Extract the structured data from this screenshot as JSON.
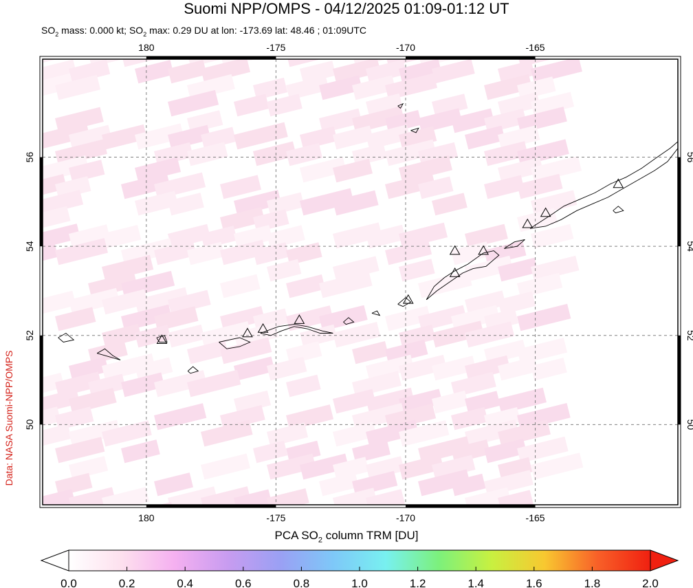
{
  "header": {
    "title": "Suomi NPP/OMPS - 04/12/2025 01:09-01:12 UT",
    "subtitle_part1": "SO",
    "subtitle_sub1": "2",
    "subtitle_part2": " mass: 0.000 kt; SO",
    "subtitle_sub2": "2",
    "subtitle_part3": " max: 0.29 DU at lon: -173.69 lat: 48.46 ; 01:09UTC"
  },
  "credit": "Data: NASA Suomi-NPP/OMPS",
  "map": {
    "lon_range": [
      -184,
      -159.5
    ],
    "lat_range": [
      48.2,
      58.2
    ],
    "lon_ticks": [
      {
        "lon": 180,
        "label": "180"
      },
      {
        "lon": -175,
        "label": "-175"
      },
      {
        "lon": -170,
        "label": "-170"
      },
      {
        "lon": -165,
        "label": "-165"
      }
    ],
    "lat_ticks": [
      {
        "lat": 56,
        "label": "56"
      },
      {
        "lat": 54,
        "label": "54"
      },
      {
        "lat": 52,
        "label": "52"
      },
      {
        "lat": 50,
        "label": "50"
      }
    ],
    "colors": {
      "frame": "#000000",
      "grid": "#808080",
      "coast": "#000000",
      "so2_low": "#fde6f0"
    },
    "volcanoes": [
      {
        "lon": -179.4,
        "lat": 51.9
      },
      {
        "lon": -176.1,
        "lat": 52.05
      },
      {
        "lon": -175.5,
        "lat": 52.15
      },
      {
        "lon": -174.1,
        "lat": 52.35
      },
      {
        "lon": -169.9,
        "lat": 52.8
      },
      {
        "lon": -168.1,
        "lat": 53.4
      },
      {
        "lon": -168.1,
        "lat": 53.9
      },
      {
        "lon": -167.0,
        "lat": 53.9
      },
      {
        "lon": -165.3,
        "lat": 54.5
      },
      {
        "lon": -164.6,
        "lat": 54.75
      },
      {
        "lon": -161.8,
        "lat": 55.4
      }
    ]
  },
  "colorbar": {
    "title_part1": "PCA SO",
    "title_sub": "2",
    "title_part2": " column TRM [DU]",
    "min": 0.0,
    "max": 2.0,
    "tick_labels": [
      "0.0",
      "0.2",
      "0.4",
      "0.6",
      "0.8",
      "1.0",
      "1.2",
      "1.4",
      "1.6",
      "1.8",
      "2.0"
    ],
    "colors": [
      "#ffffff",
      "#fde0ee",
      "#f5b0f0",
      "#c89cf0",
      "#9aa0f4",
      "#7ec8f8",
      "#78f0f0",
      "#7cf07c",
      "#c8f040",
      "#f8c830",
      "#f86028",
      "#f02010"
    ]
  }
}
